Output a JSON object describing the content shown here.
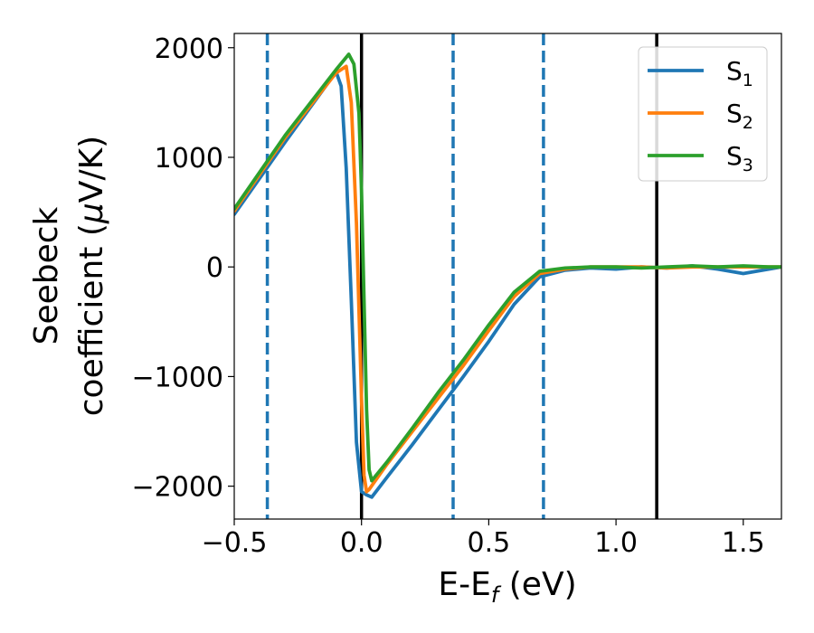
{
  "chart_data": {
    "type": "line",
    "title": "",
    "xlabel": "E-E",
    "xlabel_sub": "f",
    "xlabel_unit": " (eV)",
    "ylabel_line1": "Seebeck",
    "ylabel_line2": "coefficient  (",
    "ylabel_mu": "μ",
    "ylabel_unit": "V/K)",
    "xlim": [
      -0.5,
      1.65
    ],
    "ylim": [
      -2300,
      2130
    ],
    "xticks": [
      -0.5,
      0.0,
      0.5,
      1.0,
      1.5
    ],
    "xtick_labels": [
      "−0.5",
      "0.0",
      "0.5",
      "1.0",
      "1.5"
    ],
    "yticks": [
      -2000,
      -1000,
      0,
      1000,
      2000
    ],
    "ytick_labels": [
      "−2000",
      "−1000",
      "0",
      "1000",
      "2000"
    ],
    "grid": false,
    "legend_position": "top-right",
    "vertical_lines": [
      {
        "x": -0.37,
        "style": "dashed",
        "color": "#1f77b4"
      },
      {
        "x": 0.0,
        "style": "solid",
        "color": "#000000"
      },
      {
        "x": 0.36,
        "style": "dashed",
        "color": "#1f77b4"
      },
      {
        "x": 0.715,
        "style": "dashed",
        "color": "#1f77b4"
      },
      {
        "x": 1.16,
        "style": "solid",
        "color": "#000000"
      }
    ],
    "series": [
      {
        "name": "S",
        "subscript": "1",
        "color": "#1f77b4",
        "x": [
          -0.5,
          -0.3,
          -0.1,
          -0.08,
          -0.06,
          -0.04,
          -0.02,
          0.0,
          0.02,
          0.04,
          0.1,
          0.2,
          0.3,
          0.4,
          0.5,
          0.6,
          0.7,
          0.8,
          0.9,
          1.0,
          1.1,
          1.2,
          1.3,
          1.4,
          1.5,
          1.6,
          1.65
        ],
        "y": [
          480,
          1140,
          1780,
          1650,
          900,
          -300,
          -1600,
          -2050,
          -2080,
          -2100,
          -1920,
          -1620,
          -1310,
          -1000,
          -680,
          -340,
          -90,
          -30,
          -10,
          -20,
          0,
          -10,
          10,
          -20,
          -60,
          -20,
          0
        ]
      },
      {
        "name": "S",
        "subscript": "2",
        "color": "#ff7f0e",
        "x": [
          -0.5,
          -0.3,
          -0.1,
          -0.06,
          -0.04,
          -0.02,
          0.0,
          0.01,
          0.02,
          0.03,
          0.1,
          0.2,
          0.3,
          0.4,
          0.5,
          0.6,
          0.7,
          0.8,
          0.9,
          1.0,
          1.1,
          1.2,
          1.3,
          1.4,
          1.5,
          1.6,
          1.65
        ],
        "y": [
          510,
          1180,
          1770,
          1830,
          1500,
          400,
          -1200,
          -1900,
          -2050,
          -2030,
          -1800,
          -1500,
          -1200,
          -900,
          -580,
          -270,
          -60,
          -20,
          0,
          0,
          0,
          -10,
          0,
          0,
          0,
          0,
          0
        ]
      },
      {
        "name": "S",
        "subscript": "3",
        "color": "#2ca02c",
        "x": [
          -0.5,
          -0.3,
          -0.1,
          -0.05,
          -0.03,
          -0.01,
          0.0,
          0.01,
          0.02,
          0.03,
          0.04,
          0.1,
          0.2,
          0.3,
          0.4,
          0.5,
          0.6,
          0.7,
          0.8,
          0.9,
          1.0,
          1.1,
          1.2,
          1.3,
          1.4,
          1.5,
          1.6,
          1.65
        ],
        "y": [
          530,
          1200,
          1800,
          1940,
          1850,
          1400,
          700,
          -300,
          -1300,
          -1850,
          -1950,
          -1780,
          -1470,
          -1150,
          -850,
          -530,
          -230,
          -40,
          -10,
          0,
          0,
          -10,
          0,
          10,
          0,
          10,
          0,
          0
        ]
      }
    ]
  }
}
